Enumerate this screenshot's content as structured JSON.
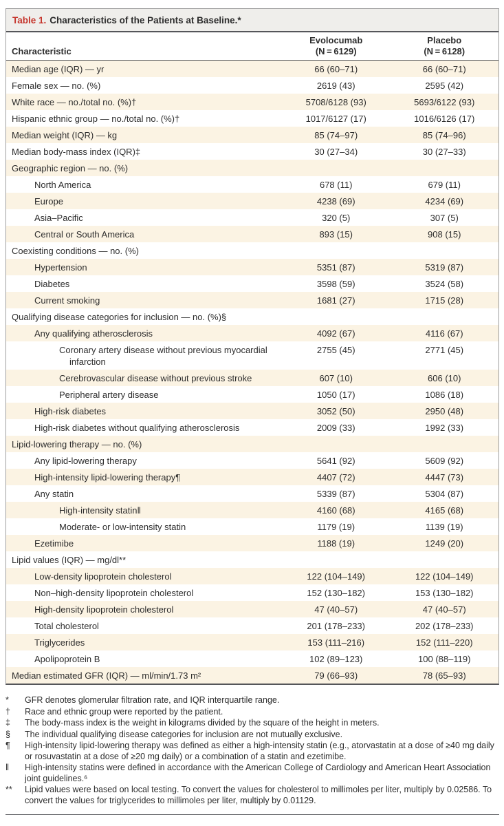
{
  "colors": {
    "accent_red": "#c5352c",
    "stripe_beige": "#fbf3e3",
    "title_bar_bg": "#efeeeb",
    "rule_dark": "#55565a",
    "border_gray": "#9c9c9c",
    "text": "#2d2d2d"
  },
  "table": {
    "title_label": "Table 1.",
    "title_text": "Characteristics of the Patients at Baseline.*",
    "columns": {
      "characteristic": "Characteristic",
      "col1_line1": "Evolocumab",
      "col1_line2": "(N = 6129)",
      "col2_line1": "Placebo",
      "col2_line2": "(N = 6128)"
    },
    "rows": [
      {
        "label": "Median age (IQR) — yr",
        "indent": 0,
        "v1": "66 (60–71)",
        "v2": "66 (60–71)"
      },
      {
        "label": "Female sex — no. (%)",
        "indent": 0,
        "v1": "2619 (43)",
        "v2": "2595 (42)"
      },
      {
        "label": "White race — no./total no. (%)†",
        "indent": 0,
        "v1": "5708/6128 (93)",
        "v2": "5693/6122 (93)"
      },
      {
        "label": "Hispanic ethnic group — no./total no. (%)†",
        "indent": 0,
        "v1": "1017/6127 (17)",
        "v2": "1016/6126 (17)"
      },
      {
        "label": "Median weight (IQR) — kg",
        "indent": 0,
        "v1": "85 (74–97)",
        "v2": "85 (74–96)"
      },
      {
        "label": "Median body-mass index (IQR)‡",
        "indent": 0,
        "v1": "30 (27–34)",
        "v2": "30 (27–33)"
      },
      {
        "label": "Geographic region — no. (%)",
        "indent": 0,
        "v1": "",
        "v2": ""
      },
      {
        "label": "North America",
        "indent": 1,
        "v1": "678 (11)",
        "v2": "679 (11)"
      },
      {
        "label": "Europe",
        "indent": 1,
        "v1": "4238 (69)",
        "v2": "4234 (69)"
      },
      {
        "label": "Asia–Pacific",
        "indent": 1,
        "v1": "320 (5)",
        "v2": "307 (5)"
      },
      {
        "label": "Central or South America",
        "indent": 1,
        "v1": "893 (15)",
        "v2": "908 (15)"
      },
      {
        "label": "Coexisting conditions — no. (%)",
        "indent": 0,
        "v1": "",
        "v2": ""
      },
      {
        "label": "Hypertension",
        "indent": 1,
        "v1": "5351 (87)",
        "v2": "5319 (87)"
      },
      {
        "label": "Diabetes",
        "indent": 1,
        "v1": "3598 (59)",
        "v2": "3524 (58)"
      },
      {
        "label": "Current smoking",
        "indent": 1,
        "v1": "1681 (27)",
        "v2": "1715 (28)"
      },
      {
        "label": "Qualifying disease categories for inclusion — no. (%)§",
        "indent": 0,
        "v1": "",
        "v2": ""
      },
      {
        "label": "Any qualifying atherosclerosis",
        "indent": 1,
        "v1": "4092 (67)",
        "v2": "4116 (67)"
      },
      {
        "label": "Coronary artery disease without previous myocardial\ninfarction",
        "indent": 2,
        "v1": "2755 (45)",
        "v2": "2771 (45)"
      },
      {
        "label": "Cerebrovascular disease without previous stroke",
        "indent": 2,
        "v1": "607 (10)",
        "v2": "606 (10)"
      },
      {
        "label": "Peripheral artery disease",
        "indent": 2,
        "v1": "1050 (17)",
        "v2": "1086 (18)"
      },
      {
        "label": "High-risk diabetes",
        "indent": 1,
        "v1": "3052 (50)",
        "v2": "2950 (48)"
      },
      {
        "label": "High-risk diabetes without qualifying atherosclerosis",
        "indent": 1,
        "v1": "2009 (33)",
        "v2": "1992 (33)"
      },
      {
        "label": "Lipid-lowering therapy — no. (%)",
        "indent": 0,
        "v1": "",
        "v2": ""
      },
      {
        "label": "Any lipid-lowering therapy",
        "indent": 1,
        "v1": "5641 (92)",
        "v2": "5609 (92)"
      },
      {
        "label": "High-intensity lipid-lowering therapy¶",
        "indent": 1,
        "v1": "4407 (72)",
        "v2": "4447 (73)"
      },
      {
        "label": "Any statin",
        "indent": 1,
        "v1": "5339 (87)",
        "v2": "5304 (87)"
      },
      {
        "label": "High-intensity statin‖",
        "indent": 2,
        "v1": "4160 (68)",
        "v2": "4165 (68)"
      },
      {
        "label": "Moderate- or low-intensity statin",
        "indent": 2,
        "v1": "1179 (19)",
        "v2": "1139 (19)"
      },
      {
        "label": "Ezetimibe",
        "indent": 1,
        "v1": "1188 (19)",
        "v2": "1249 (20)"
      },
      {
        "label": "Lipid values (IQR) — mg/dl**",
        "indent": 0,
        "v1": "",
        "v2": ""
      },
      {
        "label": "Low-density lipoprotein cholesterol",
        "indent": 1,
        "v1": "122 (104–149)",
        "v2": "122 (104–149)"
      },
      {
        "label": "Non–high-density lipoprotein cholesterol",
        "indent": 1,
        "v1": "152 (130–182)",
        "v2": "153 (130–182)"
      },
      {
        "label": "High-density lipoprotein cholesterol",
        "indent": 1,
        "v1": "47 (40–57)",
        "v2": "47 (40–57)"
      },
      {
        "label": "Total cholesterol",
        "indent": 1,
        "v1": "201 (178–233)",
        "v2": "202 (178–233)"
      },
      {
        "label": "Triglycerides",
        "indent": 1,
        "v1": "153 (111–216)",
        "v2": "152 (111–220)"
      },
      {
        "label": "Apolipoprotein B",
        "indent": 1,
        "v1": "102 (89–123)",
        "v2": "100 (88–119)"
      },
      {
        "label": "Median estimated GFR (IQR) — ml/min/1.73 m²",
        "indent": 0,
        "v1": "79 (66–93)",
        "v2": "78 (65–93)"
      }
    ]
  },
  "footnotes": [
    {
      "symbol": "*",
      "text": "GFR denotes glomerular filtration rate, and IQR interquartile range."
    },
    {
      "symbol": "†",
      "text": "Race and ethnic group were reported by the patient."
    },
    {
      "symbol": "‡",
      "text": "The body-mass index is the weight in kilograms divided by the square of the height in meters."
    },
    {
      "symbol": "§",
      "text": "The individual qualifying disease categories for inclusion are not mutually exclusive."
    },
    {
      "symbol": "¶",
      "text": "High-intensity lipid-lowering therapy was defined as either a high-intensity statin (e.g., atorvastatin at a dose of ≥40 mg daily or rosuvastatin at a dose of ≥20 mg daily) or a combination of a statin and ezetimibe."
    },
    {
      "symbol": "‖",
      "text": "High-intensity statins were defined in accordance with the American College of Cardiology and American Heart Association joint guidelines.⁶"
    },
    {
      "symbol": "**",
      "text": "Lipid values were based on local testing. To convert the values for cholesterol to millimoles per liter, multiply by 0.02586. To convert the values for triglycerides to millimoles per liter, multiply by 0.01129."
    }
  ]
}
